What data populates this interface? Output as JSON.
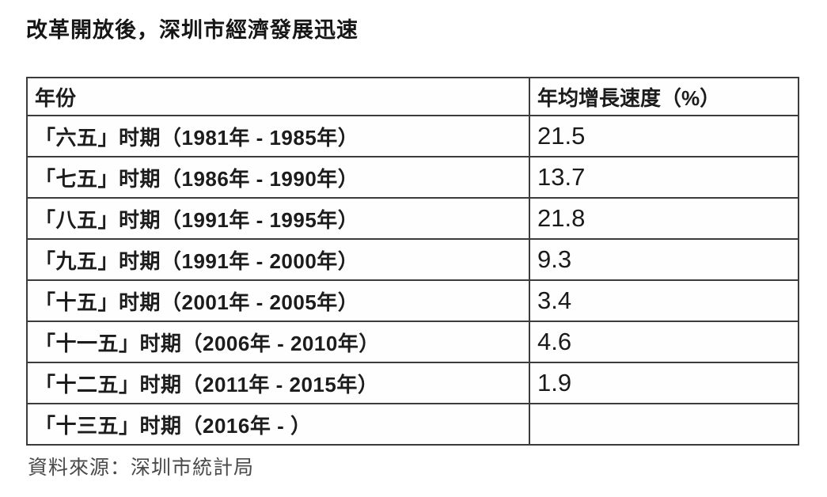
{
  "title": "改革開放後，深圳市經濟發展迅速",
  "source_note": "資料來源：深圳市統計局",
  "colors": {
    "background": "#ffffff",
    "border": "#3c3c3c",
    "text": "#1c1c1c",
    "muted_text": "#4a4a4a"
  },
  "table": {
    "headers": [
      "年份",
      "年均增長速度（%）"
    ],
    "rows": [
      {
        "period": "「六五」时期（1981年 - 1985年）",
        "rate": "21.5"
      },
      {
        "period": "「七五」时期（1986年 - 1990年）",
        "rate": "13.7"
      },
      {
        "period": "「八五」时期（1991年 - 1995年）",
        "rate": "21.8"
      },
      {
        "period": "「九五」时期（1991年 - 2000年）",
        "rate": "9.3"
      },
      {
        "period": "「十五」时期（2001年 - 2005年）",
        "rate": "3.4"
      },
      {
        "period": "「十一五」时期（2006年 - 2010年）",
        "rate": "4.6"
      },
      {
        "period": "「十二五」时期（2011年 - 2015年）",
        "rate": "1.9"
      },
      {
        "period": "「十三五」时期（2016年 - ）",
        "rate": ""
      }
    ]
  },
  "chart_data": {
    "type": "table",
    "title": "改革開放後，深圳市經濟發展迅速",
    "columns": [
      "年份",
      "年均增長速度（%）"
    ],
    "rows": [
      [
        "「六五」时期（1981年 - 1985年）",
        21.5
      ],
      [
        "「七五」时期（1986年 - 1990年）",
        13.7
      ],
      [
        "「八五」时期（1991年 - 1995年）",
        21.8
      ],
      [
        "「九五」时期（1991年 - 2000年）",
        9.3
      ],
      [
        "「十五」时期（2001年 - 2005年）",
        3.4
      ],
      [
        "「十一五」时期（2006年 - 2010年）",
        4.6
      ],
      [
        "「十二五」时期（2011年 - 2015年）",
        1.9
      ],
      [
        "「十三五」时期（2016年 - ）",
        null
      ]
    ],
    "source": "資料來源：深圳市統計局"
  }
}
